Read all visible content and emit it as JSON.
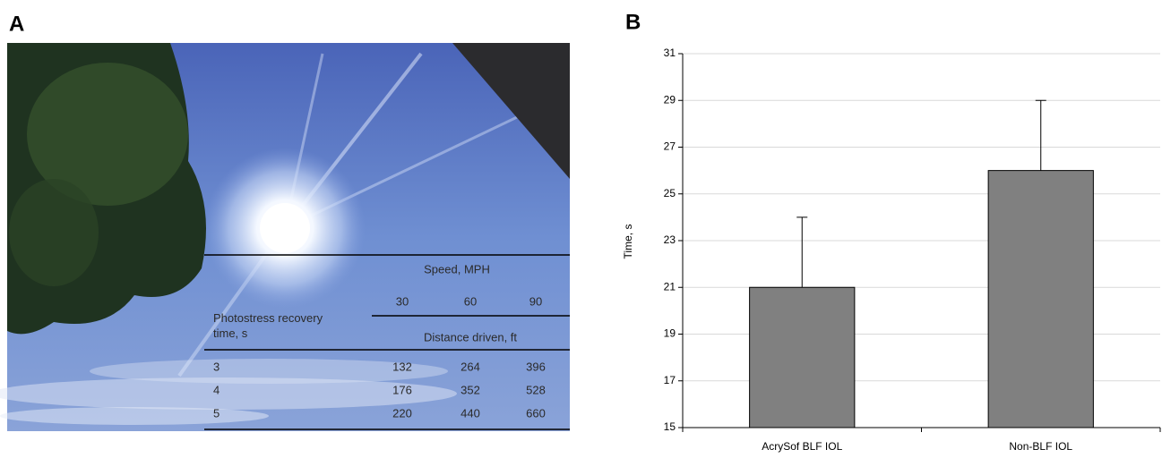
{
  "panel_a": {
    "label": "A",
    "table": {
      "speed_header": "Speed, MPH",
      "speeds": [
        30,
        60,
        90
      ],
      "row_header": "Photostress recovery time, s",
      "distance_header": "Distance driven, ft",
      "rows": [
        [
          3,
          132,
          264,
          396
        ],
        [
          4,
          176,
          352,
          528
        ],
        [
          5,
          220,
          440,
          660
        ]
      ]
    }
  },
  "panel_b": {
    "label": "B"
  },
  "chart_data": {
    "type": "bar",
    "categories": [
      "AcrySof BLF IOL",
      "Non-BLF IOL"
    ],
    "values": [
      21,
      26
    ],
    "errors": [
      3,
      3
    ],
    "color": "#808080",
    "ylabel": "Time, s",
    "ylim": [
      15,
      31
    ],
    "yticks": [
      15,
      17,
      19,
      21,
      23,
      25,
      27,
      29,
      31
    ],
    "grid": true
  }
}
